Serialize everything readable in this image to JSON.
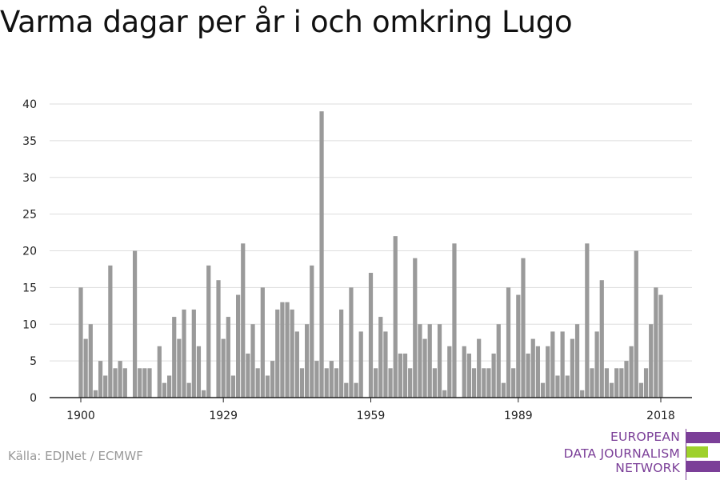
{
  "title": "Varma dagar per år i och omkring Lugo",
  "source": "Källa: EDJNet / ECMWF",
  "logo": {
    "line1": "EUROPEAN",
    "line2": "DATA JOURNALISM",
    "line3": "NETWORK",
    "colors": [
      "#7b3f98",
      "#9ed12b",
      "#7b3f98"
    ]
  },
  "colors": {
    "bar": "#9a9a9a",
    "grid": "#dddddd",
    "axis": "#222222"
  },
  "chart_data": {
    "type": "bar",
    "title": "Varma dagar per år i och omkring Lugo",
    "xlabel": "",
    "ylabel": "",
    "ylim": [
      0,
      40
    ],
    "yticks": [
      0,
      5,
      10,
      15,
      20,
      25,
      30,
      35,
      40
    ],
    "xticks": [
      1900,
      1929,
      1959,
      1989,
      2018
    ],
    "grid": true,
    "x": [
      1900,
      1901,
      1902,
      1903,
      1904,
      1905,
      1906,
      1907,
      1908,
      1909,
      1910,
      1911,
      1912,
      1913,
      1914,
      1915,
      1916,
      1917,
      1918,
      1919,
      1920,
      1921,
      1922,
      1923,
      1924,
      1925,
      1926,
      1927,
      1928,
      1929,
      1930,
      1931,
      1932,
      1933,
      1934,
      1935,
      1936,
      1937,
      1938,
      1939,
      1940,
      1941,
      1942,
      1943,
      1944,
      1945,
      1946,
      1947,
      1948,
      1949,
      1950,
      1951,
      1952,
      1953,
      1954,
      1955,
      1956,
      1957,
      1958,
      1959,
      1960,
      1961,
      1962,
      1963,
      1964,
      1965,
      1966,
      1967,
      1968,
      1969,
      1970,
      1971,
      1972,
      1973,
      1974,
      1975,
      1976,
      1977,
      1978,
      1979,
      1980,
      1981,
      1982,
      1983,
      1984,
      1985,
      1986,
      1987,
      1988,
      1989,
      1990,
      1991,
      1992,
      1993,
      1994,
      1995,
      1996,
      1997,
      1998,
      1999,
      2000,
      2001,
      2002,
      2003,
      2004,
      2005,
      2006,
      2007,
      2008,
      2009,
      2010,
      2011,
      2012,
      2013,
      2014,
      2015,
      2016,
      2017,
      2018
    ],
    "values": [
      15,
      8,
      10,
      1,
      5,
      3,
      18,
      4,
      5,
      4,
      0,
      20,
      4,
      4,
      4,
      0,
      7,
      2,
      3,
      11,
      8,
      12,
      2,
      12,
      7,
      1,
      18,
      0,
      16,
      8,
      11,
      3,
      14,
      21,
      6,
      10,
      4,
      15,
      3,
      5,
      12,
      13,
      13,
      12,
      9,
      4,
      10,
      18,
      5,
      39,
      4,
      5,
      4,
      12,
      2,
      15,
      2,
      9,
      0,
      17,
      4,
      11,
      9,
      4,
      22,
      6,
      6,
      4,
      19,
      10,
      8,
      10,
      4,
      10,
      1,
      7,
      21,
      0,
      7,
      6,
      4,
      8,
      4,
      4,
      6,
      10,
      2,
      15,
      4,
      14,
      19,
      6,
      8,
      7,
      2,
      7,
      9,
      3,
      9,
      3,
      8,
      10,
      1,
      21,
      4,
      9,
      16,
      4,
      2,
      4,
      4,
      5,
      7,
      20,
      2,
      4,
      10,
      15,
      14
    ]
  }
}
